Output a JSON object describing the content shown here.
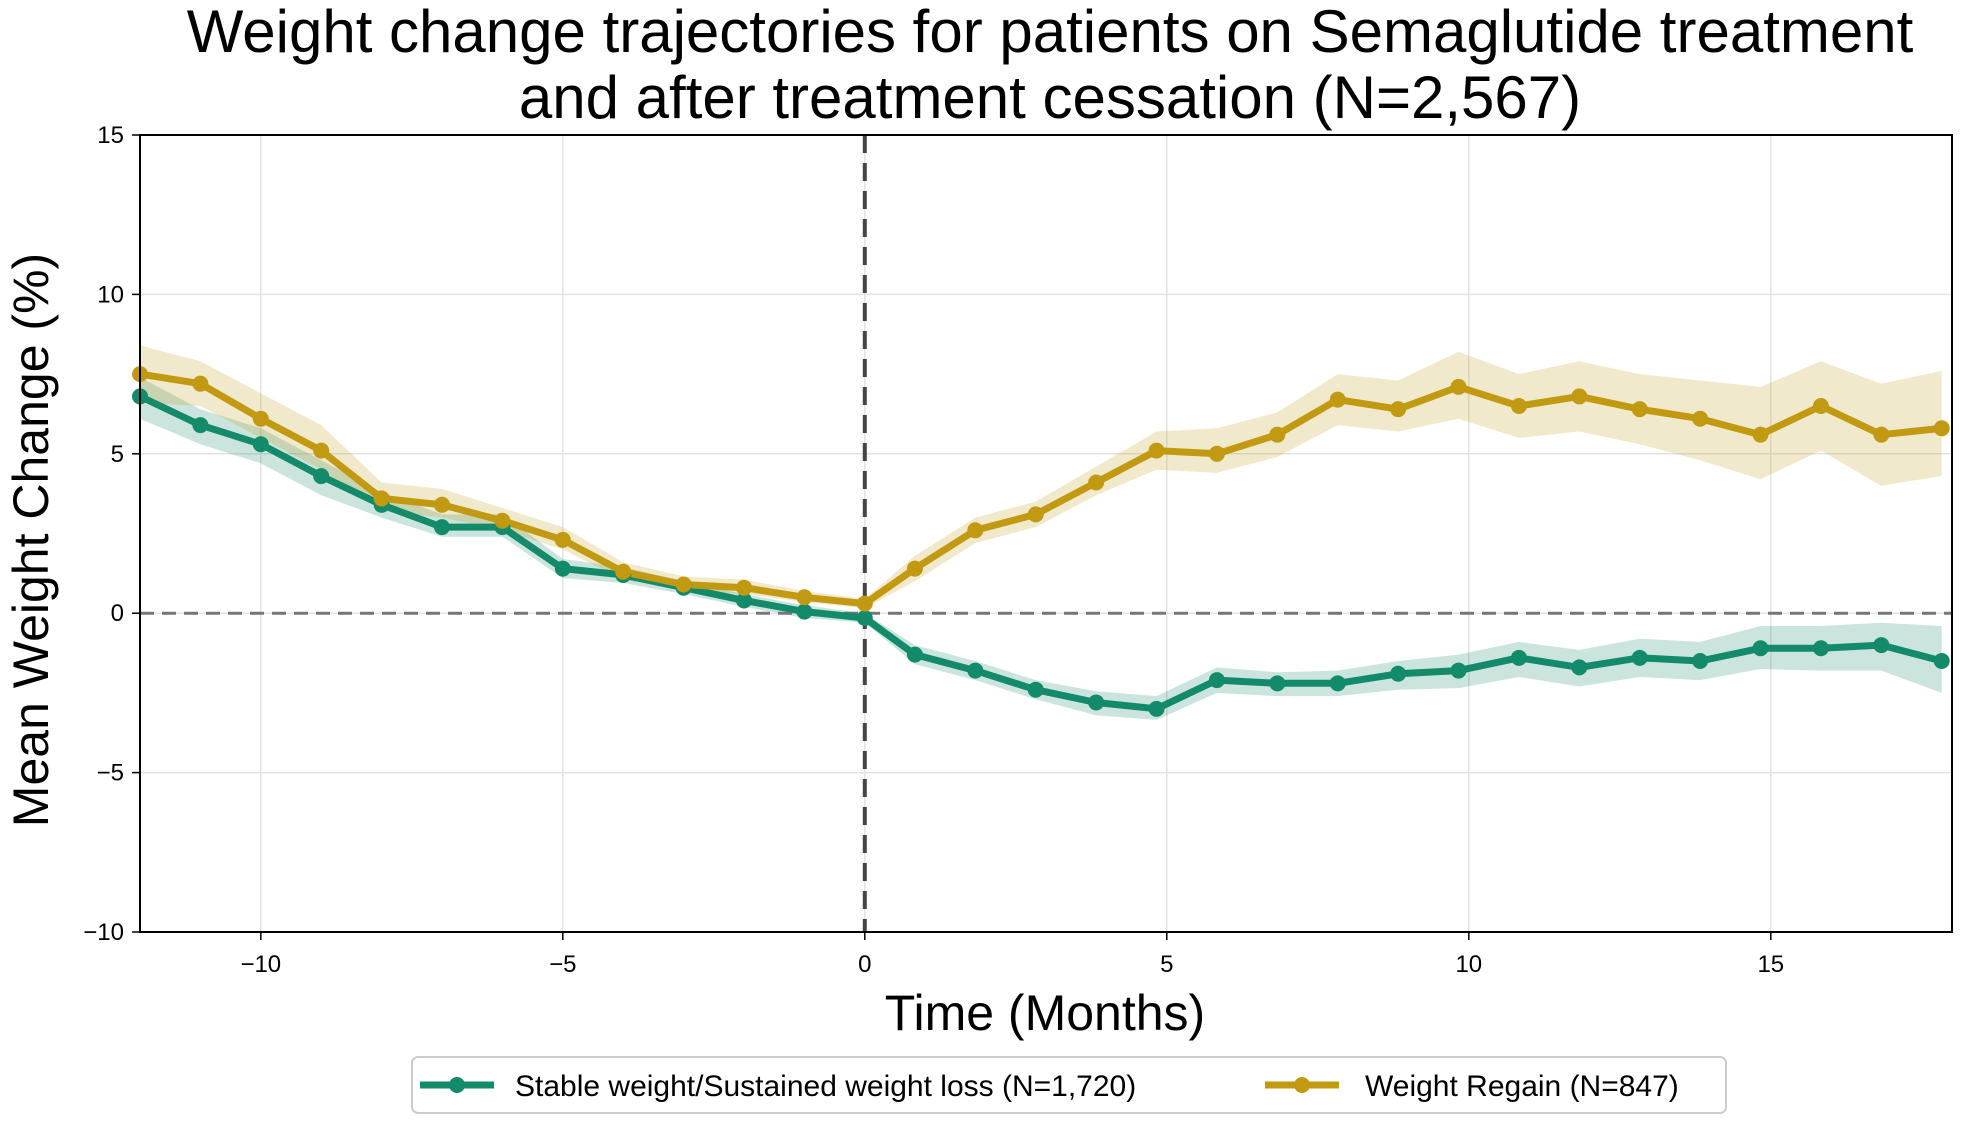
{
  "chart_data": {
    "type": "line",
    "title_lines": [
      "Weight change trajectories for patients on Semaglutide treatment",
      "and after treatment cessation (N=2,567)"
    ],
    "xlabel": "Time (Months)",
    "ylabel": "Mean Weight Change (%)",
    "xlim": [
      -12,
      18
    ],
    "ylim": [
      -10,
      15
    ],
    "xticks": [
      -10,
      -5,
      0,
      5,
      10,
      15
    ],
    "yticks": [
      -10,
      -5,
      0,
      5,
      10,
      15
    ],
    "xtick_labels": [
      "−10",
      "−5",
      "0",
      "5",
      "10",
      "15"
    ],
    "ytick_labels": [
      "−10",
      "−5",
      "0",
      "5",
      "10",
      "15"
    ],
    "grid": true,
    "legend_position": "bottom-center",
    "reference_lines": {
      "horizontal_y": 0,
      "vertical_x": 0
    },
    "x": [
      -12,
      -11,
      -10,
      -9,
      -8,
      -7,
      -6,
      -5,
      -4,
      -3,
      -2,
      -1,
      0,
      0.83,
      1.83,
      2.83,
      3.83,
      4.83,
      5.83,
      6.83,
      7.83,
      8.83,
      9.83,
      10.83,
      11.83,
      12.83,
      13.83,
      14.83,
      15.83,
      16.83,
      17.83
    ],
    "series": [
      {
        "name": "Stable weight/Sustained weight loss (N=1,720)",
        "color": "#138a6a",
        "band_color": "#138a6a",
        "values": [
          6.8,
          5.9,
          5.3,
          4.3,
          3.4,
          2.7,
          2.7,
          1.4,
          1.2,
          0.8,
          0.4,
          0.05,
          -0.15,
          -1.3,
          -1.8,
          -2.4,
          -2.8,
          -3.0,
          -2.1,
          -2.2,
          -2.2,
          -1.9,
          -1.8,
          -1.4,
          -1.7,
          -1.4,
          -1.5,
          -1.1,
          -1.1,
          -1.0,
          -1.5
        ],
        "lower": [
          6.1,
          5.3,
          4.7,
          3.7,
          3.0,
          2.4,
          2.4,
          1.1,
          0.95,
          0.6,
          0.2,
          -0.15,
          -0.3,
          -1.6,
          -2.1,
          -2.7,
          -3.2,
          -3.35,
          -2.5,
          -2.6,
          -2.6,
          -2.4,
          -2.35,
          -2.0,
          -2.3,
          -2.0,
          -2.1,
          -1.75,
          -1.8,
          -1.8,
          -2.5
        ],
        "upper": [
          7.4,
          6.4,
          5.8,
          4.8,
          3.8,
          3.1,
          3.1,
          1.7,
          1.45,
          1.0,
          0.6,
          0.25,
          0.0,
          -1.0,
          -1.5,
          -2.1,
          -2.45,
          -2.6,
          -1.7,
          -1.85,
          -1.8,
          -1.5,
          -1.3,
          -0.9,
          -1.15,
          -0.8,
          -0.9,
          -0.4,
          -0.4,
          -0.3,
          -0.4
        ]
      },
      {
        "name": "Weight Regain (N=847)",
        "color": "#c19a12",
        "band_color": "#c19a12",
        "values": [
          7.5,
          7.2,
          6.1,
          5.1,
          3.6,
          3.4,
          2.9,
          2.3,
          1.3,
          0.9,
          0.8,
          0.5,
          0.3,
          1.4,
          2.6,
          3.1,
          4.1,
          5.1,
          5.0,
          5.6,
          6.7,
          6.4,
          7.1,
          6.5,
          6.8,
          6.4,
          6.1,
          5.6,
          6.5,
          5.6,
          5.8
        ],
        "lower": [
          6.6,
          6.5,
          5.5,
          4.5,
          3.2,
          3.0,
          2.6,
          2.0,
          1.05,
          0.7,
          0.6,
          0.35,
          0.15,
          1.0,
          2.2,
          2.7,
          3.7,
          4.5,
          4.4,
          4.9,
          5.9,
          5.7,
          6.1,
          5.5,
          5.7,
          5.3,
          4.8,
          4.2,
          5.1,
          4.0,
          4.3
        ],
        "upper": [
          8.4,
          7.9,
          6.9,
          5.9,
          4.1,
          3.9,
          3.3,
          2.7,
          1.6,
          1.15,
          1.05,
          0.7,
          0.45,
          1.8,
          3.0,
          3.5,
          4.6,
          5.7,
          5.8,
          6.3,
          7.5,
          7.3,
          8.2,
          7.5,
          7.9,
          7.5,
          7.3,
          7.1,
          7.9,
          7.2,
          7.6
        ]
      }
    ]
  }
}
